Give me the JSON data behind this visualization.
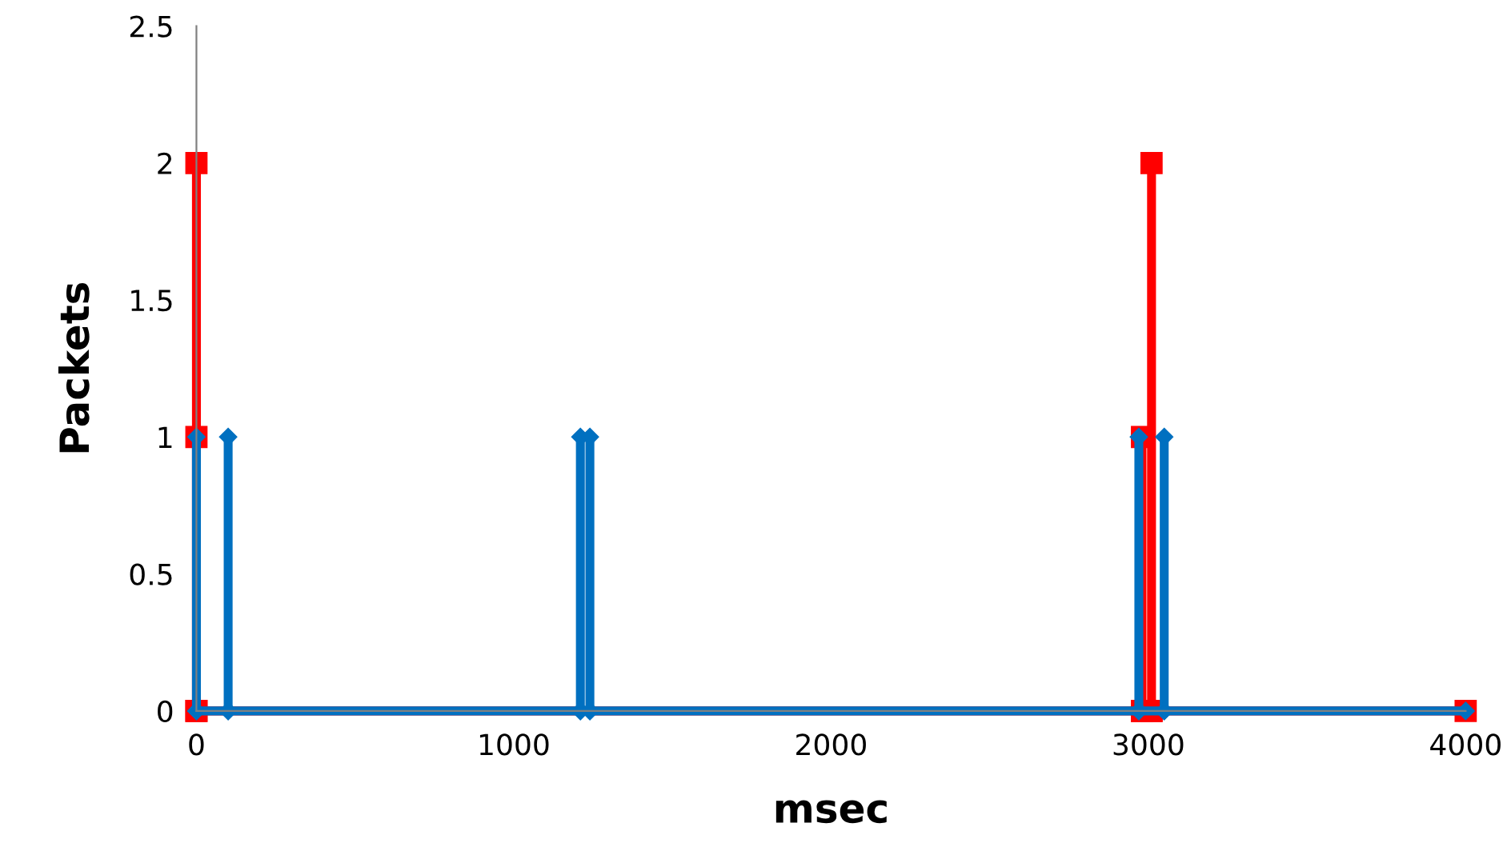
{
  "chart_data": {
    "type": "line",
    "xlabel": "msec",
    "ylabel": "Packets",
    "xlim": [
      0,
      4000
    ],
    "xticks": [
      0,
      1000,
      2000,
      3000,
      4000
    ],
    "ylim": [
      0,
      2.5
    ],
    "yticks": [
      0,
      0.5,
      1,
      1.5,
      2,
      2.5
    ],
    "grid": false,
    "series": [
      {
        "color": "#ff0000",
        "marker": "square",
        "x": [
          0,
          0,
          0,
          0,
          2980,
          2980,
          2980,
          3010,
          3010,
          3010,
          4000
        ],
        "values": [
          0,
          2,
          1,
          0,
          0,
          1,
          0,
          0,
          2,
          0,
          0
        ]
      },
      {
        "color": "#0070c0",
        "marker": "diamond",
        "x": [
          0,
          0,
          0,
          100,
          100,
          100,
          1210,
          1210,
          1210,
          1240,
          1240,
          1240,
          2970,
          2970,
          2970,
          3050,
          3050,
          3050,
          4000
        ],
        "values": [
          0,
          1,
          0,
          0,
          1,
          0,
          0,
          1,
          0,
          0,
          1,
          0,
          0,
          1,
          0,
          0,
          1,
          0,
          0
        ]
      }
    ]
  }
}
